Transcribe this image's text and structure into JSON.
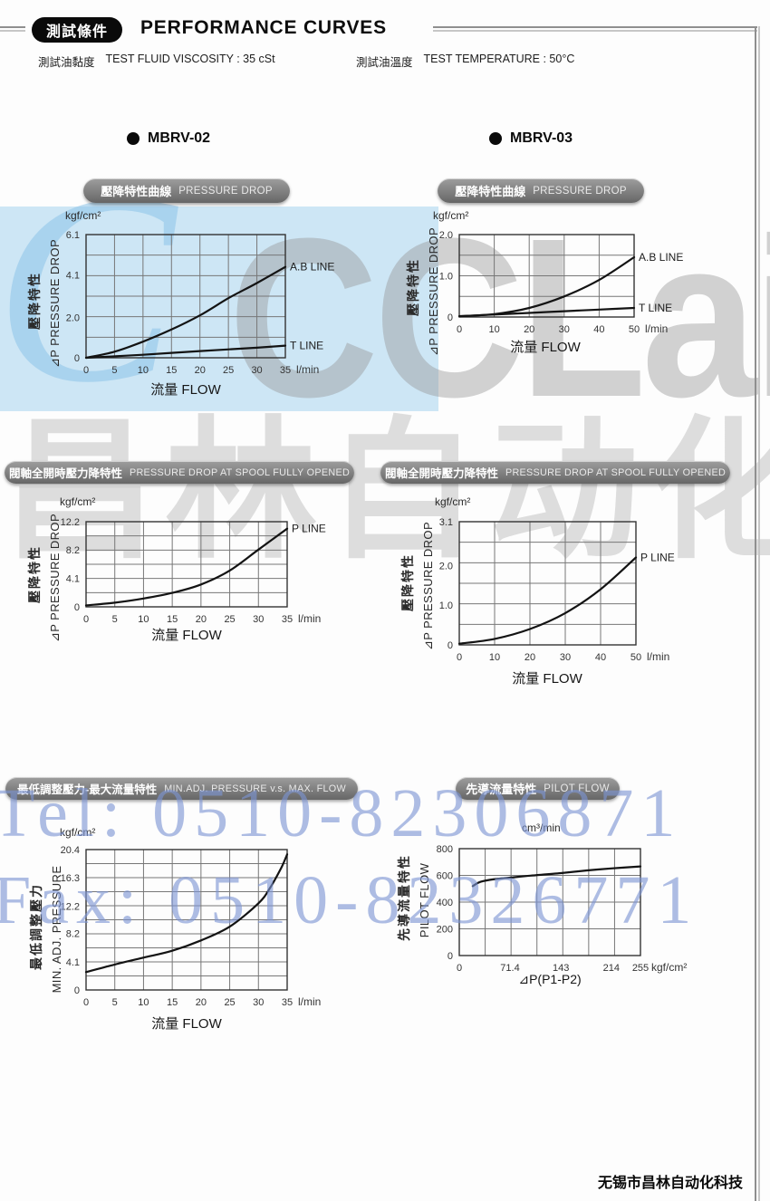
{
  "header": {
    "badge": "測試條件",
    "title": "PERFORMANCE CURVES",
    "conditions": [
      {
        "cn": "測試油黏度",
        "en": "TEST FLUID VISCOSITY : 35 cSt"
      },
      {
        "cn": "測試油溫度",
        "en": "TEST TEMPERATURE : 50°C"
      }
    ]
  },
  "models": [
    {
      "label": "MBRV-02"
    },
    {
      "label": "MBRV-03"
    }
  ],
  "watermarks": {
    "brand": "CCLair",
    "brand_script": "C",
    "brand_cn": "昌林自动化",
    "tel": "Tel: 0510-82306871",
    "fax": "Fax: 0510-82326771",
    "footer": "无锡市昌林自动化科技",
    "blue_block_color": "#cde6f5",
    "overlay_blue": "#7d94d4",
    "watermark_gray": "#949494"
  },
  "chart_data": [
    {
      "type": "line",
      "model": "MBRV-02",
      "title_cn": "壓降特性曲線",
      "title_en": "PRESSURE DROP",
      "y_unit": "kgf/cm²",
      "x_unit": "l/min",
      "xlabel": "流量 FLOW",
      "ylabel_cn": "壓降特性",
      "ylabel_en": "⊿P PRESSURE DROP",
      "xlim": [
        0,
        35
      ],
      "ylim": [
        0,
        6.1
      ],
      "x_ticks": [
        "0",
        "5",
        "10",
        "15",
        "20",
        "25",
        "30",
        "35"
      ],
      "y_ticks": [
        "0",
        "2.0",
        "4.1",
        "6.1"
      ],
      "grid_rows": 6,
      "grid_cols": 7,
      "grid": true,
      "legend_position": "right-of-curve-end",
      "series": [
        {
          "name": "A.B LINE",
          "points": [
            [
              0,
              0
            ],
            [
              5,
              0.3
            ],
            [
              10,
              0.8
            ],
            [
              15,
              1.4
            ],
            [
              20,
              2.1
            ],
            [
              25,
              2.95
            ],
            [
              30,
              3.7
            ],
            [
              35,
              4.5
            ]
          ]
        },
        {
          "name": "T LINE",
          "points": [
            [
              0,
              0
            ],
            [
              10,
              0.15
            ],
            [
              20,
              0.33
            ],
            [
              30,
              0.5
            ],
            [
              35,
              0.6
            ]
          ]
        }
      ]
    },
    {
      "type": "line",
      "model": "MBRV-03",
      "title_cn": "壓降特性曲線",
      "title_en": "PRESSURE DROP",
      "y_unit": "kgf/cm²",
      "x_unit": "l/min",
      "xlabel": "流量 FLOW",
      "ylabel_cn": "壓降特性",
      "ylabel_en": "⊿P PRESSURE DROP",
      "xlim": [
        0,
        50
      ],
      "ylim": [
        0,
        2.0
      ],
      "x_ticks": [
        "0",
        "10",
        "20",
        "30",
        "40",
        "50"
      ],
      "y_ticks": [
        "0",
        "1.0",
        "2.0"
      ],
      "grid_rows": 4,
      "grid_cols": 5,
      "grid": true,
      "legend_position": "right-of-curve-end",
      "series": [
        {
          "name": "A.B LINE",
          "points": [
            [
              0,
              0.02
            ],
            [
              10,
              0.07
            ],
            [
              20,
              0.22
            ],
            [
              30,
              0.5
            ],
            [
              40,
              0.9
            ],
            [
              50,
              1.45
            ]
          ]
        },
        {
          "name": "T LINE",
          "points": [
            [
              0,
              0.02
            ],
            [
              10,
              0.06
            ],
            [
              20,
              0.1
            ],
            [
              30,
              0.14
            ],
            [
              40,
              0.18
            ],
            [
              50,
              0.22
            ]
          ]
        }
      ]
    },
    {
      "type": "line",
      "model": "MBRV-02",
      "title_cn": "閥軸全開時壓力降特性",
      "title_en": "PRESSURE DROP  AT SPOOL FULLY OPENED",
      "y_unit": "kgf/cm²",
      "x_unit": "l/min",
      "xlabel": "流量 FLOW",
      "ylabel_cn": "壓降特性",
      "ylabel_en": "⊿P PRESSURE DROP",
      "xlim": [
        0,
        35
      ],
      "ylim": [
        0,
        12.2
      ],
      "x_ticks": [
        "0",
        "5",
        "10",
        "15",
        "20",
        "25",
        "30",
        "35"
      ],
      "y_ticks": [
        "0",
        "4.1",
        "8.2",
        "12.2"
      ],
      "grid_rows": 6,
      "grid_cols": 7,
      "grid": true,
      "legend_position": "right-of-curve-end",
      "series": [
        {
          "name": "P LINE",
          "points": [
            [
              0,
              0.2
            ],
            [
              5,
              0.6
            ],
            [
              10,
              1.2
            ],
            [
              15,
              2.0
            ],
            [
              20,
              3.2
            ],
            [
              25,
              5.2
            ],
            [
              30,
              8.2
            ],
            [
              35,
              11.2
            ]
          ]
        }
      ]
    },
    {
      "type": "line",
      "model": "MBRV-03",
      "title_cn": "閥軸全開時壓力降特性",
      "title_en": "PRESSURE DROP  AT SPOOL FULLY OPENED",
      "y_unit": "kgf/cm²",
      "x_unit": "l/min",
      "xlabel": "流量 FLOW",
      "ylabel_cn": "壓降特性",
      "ylabel_en": "⊿P PRESSURE DROP",
      "xlim": [
        0,
        50
      ],
      "ylim": [
        0,
        3.1
      ],
      "x_ticks": [
        "0",
        "10",
        "20",
        "30",
        "40",
        "50"
      ],
      "y_ticks": [
        "0",
        "1.0",
        "2.0",
        "3.1"
      ],
      "grid_rows": 6,
      "grid_cols": 5,
      "grid": true,
      "legend_position": "right-of-curve-end",
      "series": [
        {
          "name": "P LINE",
          "points": [
            [
              0,
              0.03
            ],
            [
              10,
              0.15
            ],
            [
              20,
              0.4
            ],
            [
              30,
              0.8
            ],
            [
              40,
              1.4
            ],
            [
              50,
              2.2
            ]
          ]
        }
      ]
    },
    {
      "type": "line",
      "model": "",
      "title_cn": "最低調整壓力-最大流量特性",
      "title_en": "MIN.ADJ. PRESSURE v.s. MAX. FLOW",
      "y_unit": "kgf/cm²",
      "x_unit": "l/min",
      "xlabel": "流量 FLOW",
      "ylabel_cn": "最低調整壓力",
      "ylabel_en": "MIN. ADJ. PRESSURE",
      "xlim": [
        0,
        35
      ],
      "ylim": [
        0,
        20.4
      ],
      "x_ticks": [
        "0",
        "5",
        "10",
        "15",
        "20",
        "25",
        "30",
        "35"
      ],
      "y_ticks": [
        "0",
        "4.1",
        "8.2",
        "12.2",
        "16.3",
        "20.4"
      ],
      "grid_rows": 10,
      "grid_cols": 7,
      "grid": true,
      "legend_position": "none",
      "series": [
        {
          "name": "",
          "points": [
            [
              0,
              2.6
            ],
            [
              5,
              3.7
            ],
            [
              10,
              4.7
            ],
            [
              15,
              5.7
            ],
            [
              20,
              7.2
            ],
            [
              25,
              9.2
            ],
            [
              30,
              12.6
            ],
            [
              32,
              14.8
            ],
            [
              34,
              17.8
            ],
            [
              35,
              19.7
            ]
          ]
        }
      ]
    },
    {
      "type": "line",
      "model": "",
      "title_cn": "先導流量特性",
      "title_en": "PILOT FLOW",
      "y_unit": "cm³/min",
      "x_unit": "kgf/cm²",
      "xlabel": "⊿P(P1-P2)",
      "ylabel_cn": "先導流量特性",
      "ylabel_en": "PILOT FLOW",
      "xlim": [
        0,
        255
      ],
      "ylim": [
        0,
        800
      ],
      "x_ticks": [
        "0",
        "71.4",
        "143",
        "214",
        "255"
      ],
      "y_ticks": [
        "0",
        "200",
        "400",
        "600",
        "800"
      ],
      "grid_rows": 4,
      "grid_cols": 7,
      "grid": true,
      "legend_position": "none",
      "series": [
        {
          "name": "",
          "points": [
            [
              19,
              520
            ],
            [
              30,
              552
            ],
            [
              50,
              572
            ],
            [
              71,
              583
            ],
            [
              100,
              598
            ],
            [
              143,
              617
            ],
            [
              180,
              637
            ],
            [
              214,
              652
            ],
            [
              255,
              667
            ]
          ]
        }
      ]
    }
  ]
}
